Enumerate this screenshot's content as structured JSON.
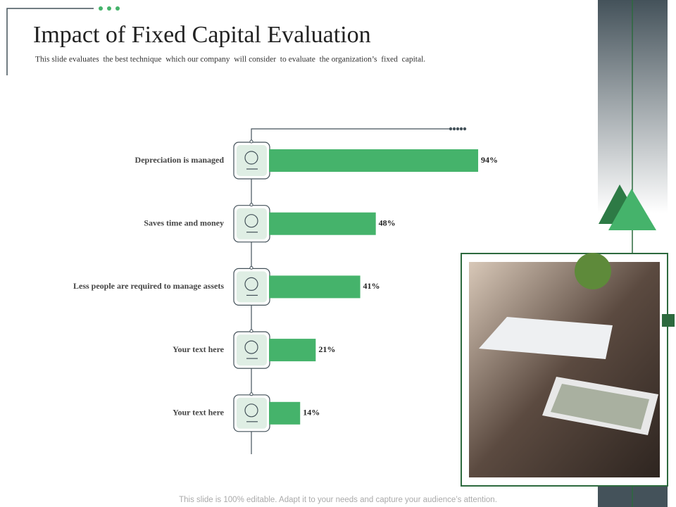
{
  "chart_data": {
    "type": "hbar",
    "title": "Impact of Fixed Capital Evaluation",
    "subtitle": "This slide evaluates  the best technique  which our company  will consider  to evaluate  the organization’s  fixed  capital.",
    "categories": [
      "Depreciation is managed",
      "Saves time and money",
      "Less people are required to manage assets",
      "Your text here",
      "Your text here"
    ],
    "values": [
      94,
      48,
      41,
      21,
      14
    ],
    "value_labels": [
      "94%",
      "48%",
      "41%",
      "21%",
      "14%"
    ],
    "color": "#45b36b",
    "xlim": [
      0,
      100
    ]
  },
  "footer": "This slide is 100% editable. Adapt it to your needs and capture your audience’s attention."
}
